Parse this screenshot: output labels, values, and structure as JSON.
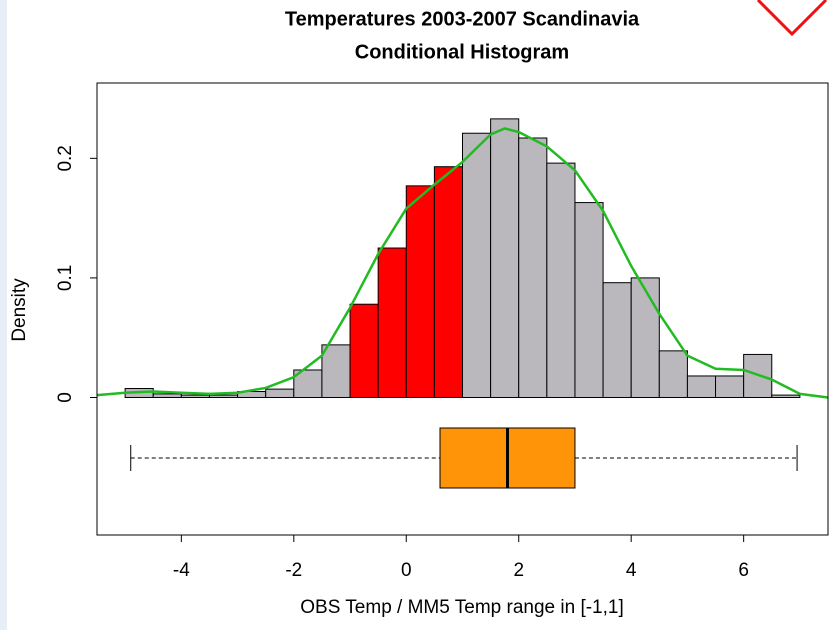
{
  "chart_data": {
    "type": "histogram",
    "title": "Temperatures 2003-2007 Scandinavia",
    "subtitle": "Conditional Histogram",
    "x_label": "OBS Temp / MM5 Temp range in [-1,1]",
    "y_label": "Density",
    "bins": [
      -5,
      -4.5,
      -4,
      -3.5,
      -3,
      -2.5,
      -2,
      -1.5,
      -1,
      -0.5,
      0,
      0.5,
      1,
      1.5,
      2,
      2.5,
      3,
      3.5,
      4,
      4.5,
      5,
      5.5,
      6,
      6.5,
      7
    ],
    "values": [
      0.0075,
      0.003,
      0.002,
      0.002,
      0.005,
      0.007,
      0.023,
      0.044,
      0.078,
      0.125,
      0.177,
      0.193,
      0.221,
      0.233,
      0.217,
      0.196,
      0.163,
      0.096,
      0.1,
      0.039,
      0.018,
      0.018,
      0.036,
      0.002
    ],
    "bar_colors": [
      "#bab8bd",
      "#bab8bd",
      "#bab8bd",
      "#bab8bd",
      "#bab8bd",
      "#bab8bd",
      "#bab8bd",
      "#bab8bd",
      "#ff0000",
      "#ff0000",
      "#ff0000",
      "#ff0000",
      "#bab8bd",
      "#bab8bd",
      "#bab8bd",
      "#bab8bd",
      "#bab8bd",
      "#bab8bd",
      "#bab8bd",
      "#bab8bd",
      "#bab8bd",
      "#bab8bd",
      "#bab8bd",
      "#bab8bd"
    ],
    "density_curve": {
      "color": "#22bb22",
      "x": [
        -5.5,
        -5,
        -4.5,
        -4,
        -3.5,
        -3,
        -2.5,
        -2,
        -1.5,
        -1,
        -0.5,
        0,
        0.5,
        1,
        1.5,
        1.75,
        2,
        2.5,
        3,
        3.5,
        4,
        4.5,
        5,
        5.5,
        6,
        6.5,
        7,
        7.5
      ],
      "values": [
        0.002,
        0.004,
        0.005,
        0.004,
        0.003,
        0.004,
        0.008,
        0.017,
        0.035,
        0.075,
        0.12,
        0.158,
        0.178,
        0.197,
        0.22,
        0.225,
        0.222,
        0.21,
        0.19,
        0.156,
        0.11,
        0.07,
        0.035,
        0.024,
        0.023,
        0.015,
        0.003,
        0.0
      ]
    },
    "boxplot": {
      "min": -4.9,
      "q1": 0.6,
      "median": 1.8,
      "q3": 3.0,
      "max": 6.95,
      "color": "#ff9408"
    },
    "xlim": [
      -5.5,
      7.5
    ],
    "xticks": [
      -4,
      -2,
      0,
      2,
      4,
      6
    ],
    "ylim": [
      -0.115,
      0.263
    ],
    "yticks": [
      0,
      0.1,
      0.2
    ]
  }
}
